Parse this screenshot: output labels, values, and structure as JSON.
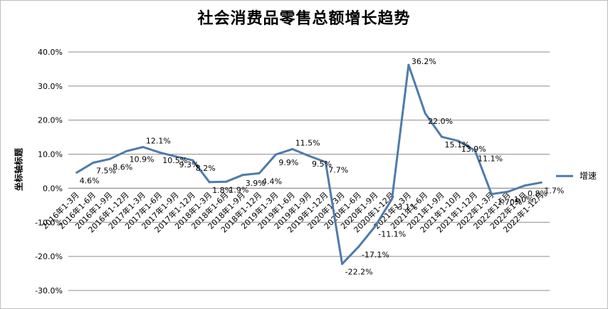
{
  "chart_data": {
    "type": "line",
    "title": "社会消费品零售总额增长趋势",
    "ylabel": "坐标轴标题",
    "xlabel": "",
    "ylim": [
      -30,
      40
    ],
    "yticks": [
      40,
      30,
      20,
      10,
      0,
      -10,
      -20,
      -30
    ],
    "ytick_labels": [
      "40.0%",
      "30.0%",
      "20.0%",
      "10.0%",
      "0.0%",
      "-10.0%",
      "-20.0%",
      "-30.0%"
    ],
    "grid": true,
    "legend_position": "right",
    "categories": [
      "2016年1-3月",
      "2016年1-6月",
      "2016年1-9月",
      "2016年1-12月",
      "2017年1-3月",
      "2017年1-6月",
      "2017年1-9月",
      "2017年1-12月",
      "2018年1-3月",
      "2018年1-6月",
      "2018年1-9月",
      "2018年1-12月",
      "2019年1-3月",
      "2019年1-6月",
      "2019年1-9月",
      "2019年1-12月",
      "2020年1-3月",
      "2020年1-6月",
      "2020年1-9月",
      "2020年1-12月",
      "2021年1-3月",
      "2021年1-6月",
      "2021年1-9月",
      "2021年1-10月",
      "2021年1-12月",
      "2022年1-3月",
      "2022年1-6月",
      "2022年1-9月",
      "2022年1-12月"
    ],
    "series": [
      {
        "name": "增速",
        "color": "#4f7bab",
        "values": [
          4.6,
          7.5,
          8.6,
          10.9,
          12.1,
          10.5,
          9.3,
          8.2,
          1.8,
          1.9,
          3.9,
          4.4,
          9.9,
          11.5,
          9.5,
          7.7,
          -22.2,
          -17.1,
          -11.1,
          -3.1,
          36.2,
          22.0,
          15.1,
          13.9,
          11.1,
          -1.7,
          -1.0,
          0.8,
          1.7
        ],
        "labels": [
          "4.6%",
          "7.5%",
          "8.6%",
          "10.9%",
          "12.1%",
          "10.5%",
          "9.3%",
          "8.2%",
          "1.8%",
          "1.9%",
          "3.9%",
          "4.4%",
          "9.9%",
          "11.5%",
          "9.5%",
          "7.7%",
          "-22.2%",
          "-17.1%",
          "-11.1%",
          "-3.1%",
          "36.2%",
          "22.0%",
          "15.1%",
          "13.9%",
          "11.1%",
          "-1.70%",
          "-1.0%",
          "0.8%",
          "1.7%"
        ]
      }
    ]
  }
}
